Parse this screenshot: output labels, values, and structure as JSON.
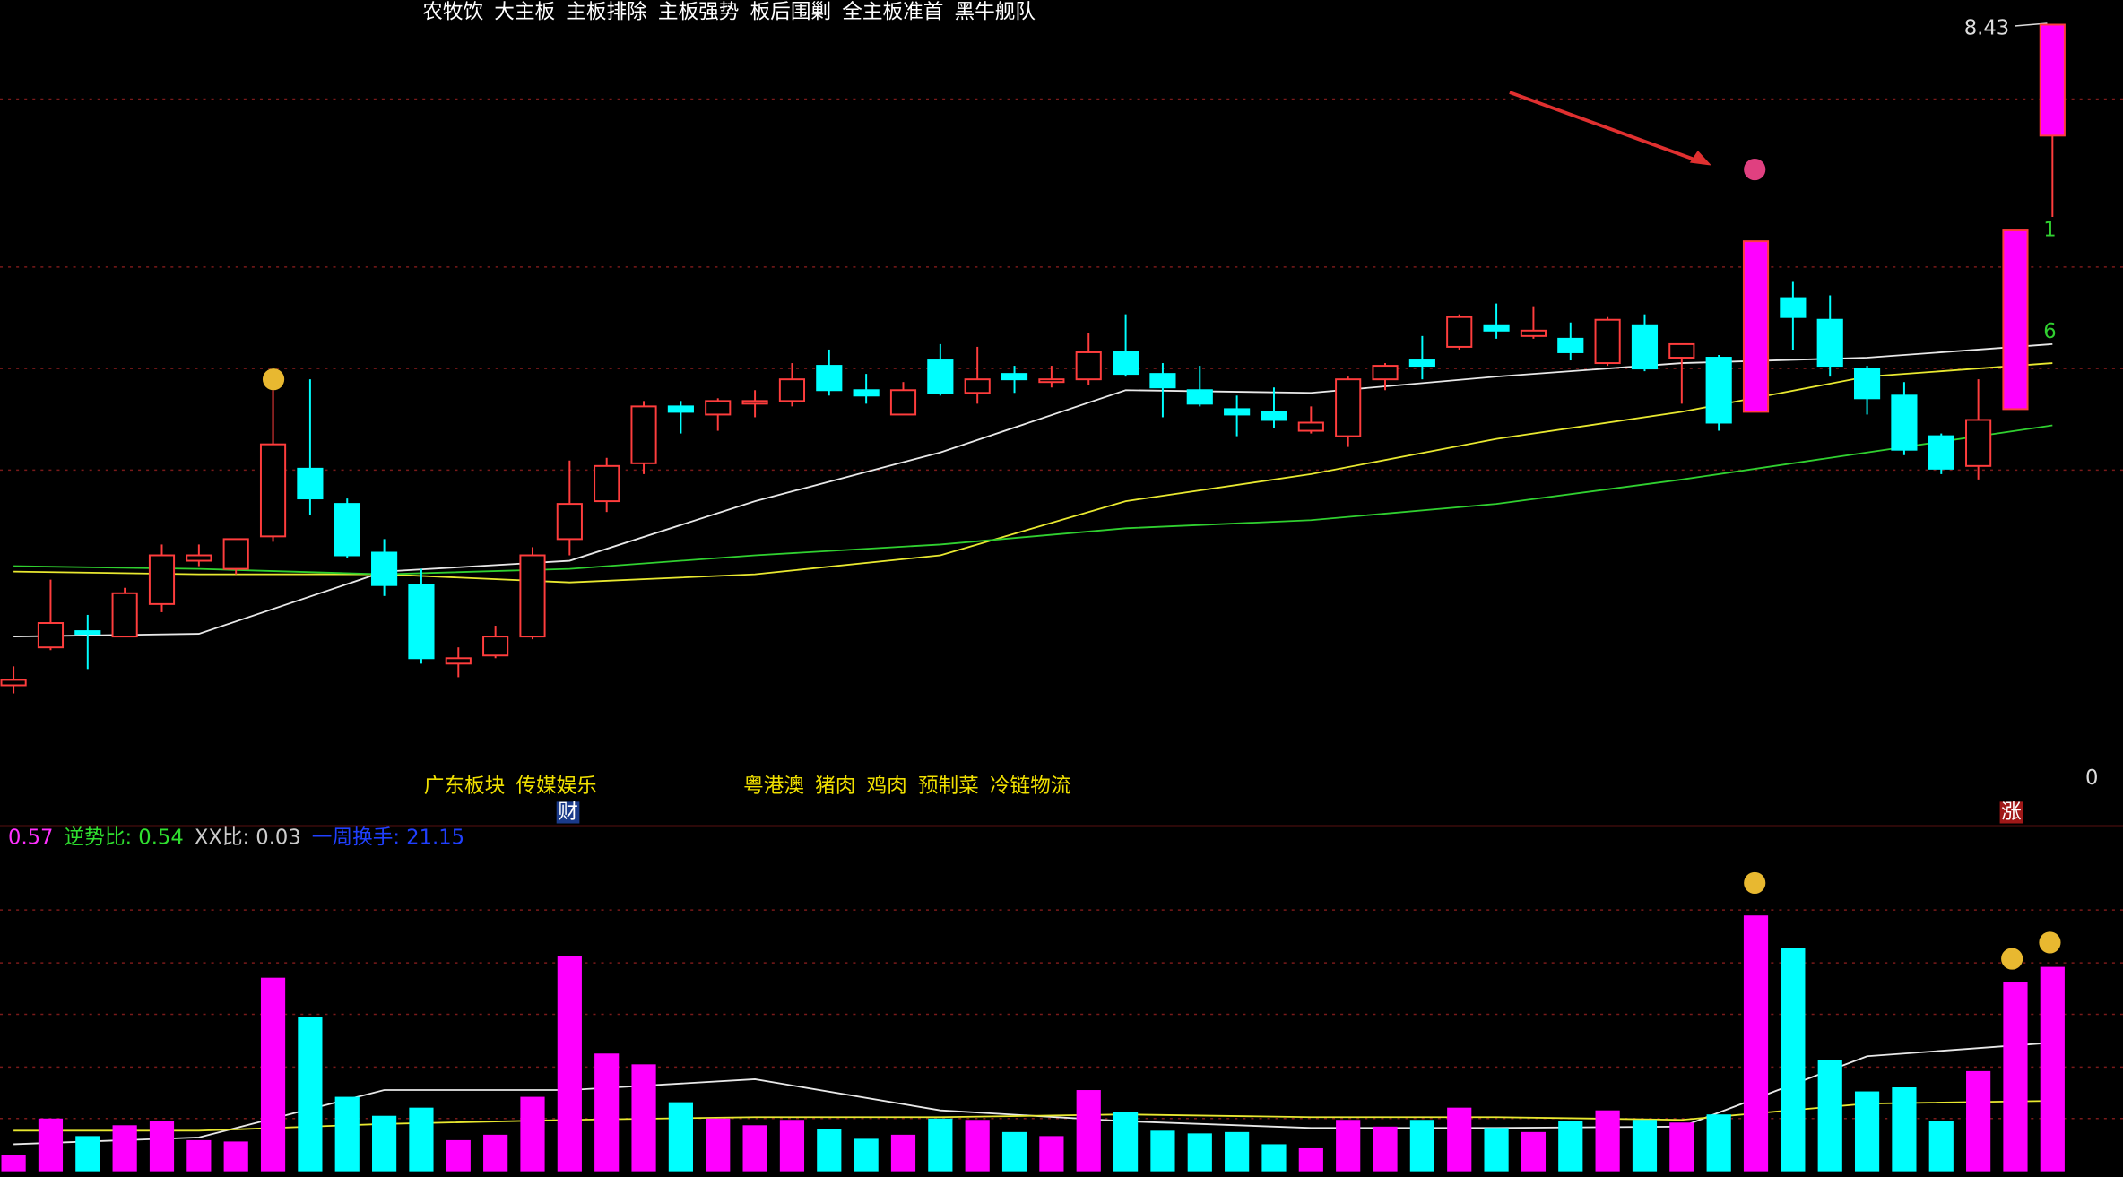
{
  "chart_data": {
    "type": "candlestick",
    "tags": [
      "农牧饮",
      "大主板",
      "主板排除",
      "主板强势",
      "板后围剿",
      "全主板准首",
      "黑牛舰队"
    ],
    "price_label": "8.43",
    "zero_label": "0",
    "sector_tags_1": [
      "广东板块",
      "传媒娱乐"
    ],
    "sector_tags_2": [
      "粤港澳",
      "猪肉",
      "鸡肉",
      "预制菜",
      "冷链物流"
    ],
    "badge_cai": "财",
    "badge_zhang": "涨",
    "marker_1": "1",
    "marker_6": "6",
    "indicator": [
      "0.57",
      "逆势比: 0.54",
      "XX比: 0.03",
      "一周换手: 21.15"
    ],
    "up_color": "#ff3d3d",
    "down_color": "#00ffff",
    "limit_color": "#ff00ff",
    "limit_up": [
      47,
      54,
      55
    ],
    "ylim": [
      5.52,
      8.52
    ],
    "vol_ylim": [
      0,
      200
    ],
    "open": [
      5.99,
      6.13,
      6.19,
      6.17,
      6.29,
      6.45,
      6.42,
      6.54,
      6.79,
      6.66,
      6.48,
      6.36,
      6.07,
      6.1,
      6.17,
      6.53,
      6.67,
      6.81,
      7.02,
      6.99,
      7.03,
      7.04,
      7.17,
      7.08,
      6.99,
      7.19,
      7.07,
      7.14,
      7.11,
      7.12,
      7.22,
      7.14,
      7.08,
      7.01,
      7.0,
      6.93,
      6.91,
      7.12,
      7.19,
      7.24,
      7.32,
      7.28,
      7.27,
      7.18,
      7.32,
      7.2,
      7.2,
      7.0,
      7.42,
      7.34,
      7.16,
      7.06,
      6.91,
      6.8,
      7.01,
      8.02
    ],
    "high": [
      6.06,
      6.38,
      6.25,
      6.35,
      6.51,
      6.51,
      6.53,
      7.08,
      7.12,
      6.68,
      6.53,
      6.42,
      6.13,
      6.21,
      6.5,
      6.82,
      6.83,
      7.04,
      7.04,
      7.05,
      7.08,
      7.18,
      7.23,
      7.14,
      7.11,
      7.25,
      7.24,
      7.17,
      7.17,
      7.29,
      7.36,
      7.18,
      7.17,
      7.06,
      7.09,
      7.02,
      7.13,
      7.18,
      7.28,
      7.36,
      7.4,
      7.39,
      7.33,
      7.35,
      7.36,
      7.25,
      7.21,
      7.63,
      7.48,
      7.43,
      7.17,
      7.11,
      6.92,
      7.12,
      7.67,
      8.43
    ],
    "low": [
      5.96,
      6.12,
      6.05,
      6.17,
      6.26,
      6.43,
      6.4,
      6.52,
      6.62,
      6.46,
      6.32,
      6.07,
      6.02,
      6.09,
      6.16,
      6.47,
      6.63,
      6.77,
      6.92,
      6.93,
      6.98,
      7.02,
      7.06,
      7.03,
      6.99,
      7.06,
      7.03,
      7.07,
      7.09,
      7.1,
      7.13,
      6.98,
      7.02,
      6.91,
      6.94,
      6.92,
      6.87,
      7.08,
      7.12,
      7.23,
      7.27,
      7.27,
      7.19,
      7.17,
      7.15,
      7.03,
      6.93,
      7.0,
      7.23,
      7.13,
      6.99,
      6.84,
      6.77,
      6.75,
      7.01,
      7.72
    ],
    "close": [
      6.01,
      6.22,
      6.18,
      6.33,
      6.47,
      6.47,
      6.53,
      6.88,
      6.68,
      6.47,
      6.36,
      6.09,
      6.09,
      6.17,
      6.47,
      6.66,
      6.8,
      7.02,
      7.0,
      7.04,
      7.04,
      7.12,
      7.08,
      7.06,
      7.08,
      7.07,
      7.12,
      7.12,
      7.12,
      7.22,
      7.14,
      7.09,
      7.03,
      6.99,
      6.97,
      6.96,
      7.12,
      7.17,
      7.17,
      7.35,
      7.3,
      7.3,
      7.22,
      7.34,
      7.16,
      7.25,
      6.96,
      7.63,
      7.35,
      7.17,
      7.05,
      6.86,
      6.79,
      6.97,
      7.67,
      8.43
    ],
    "volume": [
      12,
      39,
      26,
      34,
      37,
      23,
      22,
      143,
      114,
      55,
      41,
      47,
      23,
      27,
      55,
      159,
      87,
      79,
      51,
      39,
      34,
      38,
      31,
      24,
      27,
      39,
      38,
      29,
      26,
      60,
      44,
      30,
      28,
      29,
      20,
      17,
      38,
      33,
      38,
      47,
      32,
      29,
      37,
      45,
      38,
      36,
      42,
      189,
      165,
      82,
      59,
      62,
      37,
      74,
      140,
      151
    ],
    "ma_index": [
      0,
      5,
      10,
      15,
      20,
      25,
      30,
      35,
      40,
      45,
      50,
      55
    ],
    "ma": [
      {
        "color": "#e8e8e8",
        "values": [
          6.17,
          6.18,
          6.41,
          6.45,
          6.67,
          6.85,
          7.08,
          7.07,
          7.13,
          7.18,
          7.2,
          7.25
        ]
      },
      {
        "color": "#e8e830",
        "values": [
          6.41,
          6.4,
          6.4,
          6.37,
          6.4,
          6.47,
          6.67,
          6.77,
          6.9,
          7.0,
          7.13,
          7.18
        ]
      },
      {
        "color": "#30d030",
        "values": [
          6.43,
          6.42,
          6.4,
          6.42,
          6.47,
          6.51,
          6.57,
          6.6,
          6.66,
          6.75,
          6.85,
          6.95
        ]
      }
    ],
    "vol_ma": [
      {
        "color": "#e8e8e8",
        "values": [
          20,
          25,
          60,
          60,
          68,
          45,
          37,
          32,
          32,
          33,
          85,
          95
        ]
      },
      {
        "color": "#e8e830",
        "values": [
          30,
          30,
          35,
          38,
          40,
          40,
          42,
          40,
          40,
          38,
          50,
          52
        ]
      }
    ]
  }
}
